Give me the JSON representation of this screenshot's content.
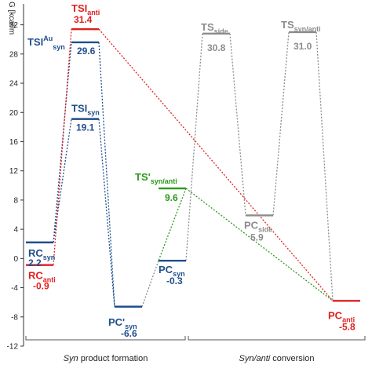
{
  "chart_data": {
    "type": "energy-profile",
    "ylabel": "G [kcal/m",
    "ylim": [
      -12,
      34
    ],
    "yticks": [
      32,
      28,
      24,
      20,
      16,
      12,
      8,
      4,
      0,
      -4,
      -8,
      -12
    ],
    "sections": [
      {
        "prefix": "Syn",
        "suffix": " product formation"
      },
      {
        "prefix": "Syn/anti",
        "suffix": " conversion"
      }
    ],
    "colors": {
      "blue": "#1f4e8c",
      "red": "#e02020",
      "green": "#2a9a1a",
      "gray": "#8c8c8c"
    },
    "levels": [
      {
        "id": "rc_syn",
        "name": "RC",
        "sub": "syn",
        "sup": "",
        "value": "2.2",
        "energy": 2.2,
        "color": "blue"
      },
      {
        "id": "rc_anti",
        "name": "RC",
        "sub": "anti",
        "sup": "",
        "value": "-0.9",
        "energy": -0.9,
        "color": "red"
      },
      {
        "id": "tsi_anti",
        "name": "TSI",
        "sub": "anti",
        "sup": "",
        "value": "31.4",
        "energy": 31.4,
        "color": "red"
      },
      {
        "id": "tsi_au_syn",
        "name": "TSI",
        "sub": "syn",
        "sup": "Au",
        "value": "29.6",
        "energy": 29.6,
        "color": "blue"
      },
      {
        "id": "tsi_syn",
        "name": "TSI",
        "sub": "syn",
        "sup": "",
        "value": "19.1",
        "energy": 19.1,
        "color": "blue"
      },
      {
        "id": "pc_prime_syn",
        "name": "PC'",
        "sub": "syn",
        "sup": "",
        "value": "-6.6",
        "energy": -6.6,
        "color": "blue"
      },
      {
        "id": "pc_syn",
        "name": "PC",
        "sub": "syn",
        "sup": "",
        "value": "-0.3",
        "energy": -0.3,
        "color": "blue"
      },
      {
        "id": "ts_prime_syn_anti",
        "name": "TS'",
        "sub": "syn/anti",
        "sup": "",
        "value": "9.6",
        "energy": 9.6,
        "color": "green"
      },
      {
        "id": "ts_side",
        "name": "TS",
        "sub": "side",
        "sup": "",
        "value": "30.8",
        "energy": 30.8,
        "color": "gray"
      },
      {
        "id": "pc_side",
        "name": "PC",
        "sub": "side",
        "sup": "",
        "value": "5.9",
        "energy": 5.9,
        "color": "gray"
      },
      {
        "id": "ts_syn_anti",
        "name": "TS",
        "sub": "syn/anti",
        "sup": "",
        "value": "31.0",
        "energy": 31.0,
        "color": "gray"
      },
      {
        "id": "pc_anti",
        "name": "PC",
        "sub": "anti",
        "sup": "",
        "value": "-5.8",
        "energy": -5.8,
        "color": "red"
      }
    ],
    "paths": [
      {
        "from": "rc_syn",
        "to": "tsi_au_syn",
        "color": "blue"
      },
      {
        "from": "tsi_au_syn",
        "to": "pc_prime_syn",
        "color": "blue"
      },
      {
        "from": "rc_syn",
        "to": "tsi_syn",
        "color": "blue"
      },
      {
        "from": "tsi_syn",
        "to": "pc_prime_syn",
        "color": "blue"
      },
      {
        "from": "pc_prime_syn",
        "to": "pc_syn",
        "color": "gray"
      },
      {
        "from": "rc_anti",
        "to": "tsi_anti",
        "color": "red"
      },
      {
        "from": "tsi_anti",
        "to": "pc_anti",
        "color": "red"
      },
      {
        "from": "pc_syn",
        "to": "ts_prime_syn_anti",
        "color": "green"
      },
      {
        "from": "ts_prime_syn_anti",
        "to": "pc_anti",
        "color": "green"
      },
      {
        "from": "pc_syn",
        "to": "ts_side",
        "color": "gray"
      },
      {
        "from": "ts_side",
        "to": "pc_side",
        "color": "gray"
      },
      {
        "from": "pc_side",
        "to": "ts_syn_anti",
        "color": "gray"
      },
      {
        "from": "ts_syn_anti",
        "to": "pc_anti",
        "color": "gray"
      }
    ]
  }
}
